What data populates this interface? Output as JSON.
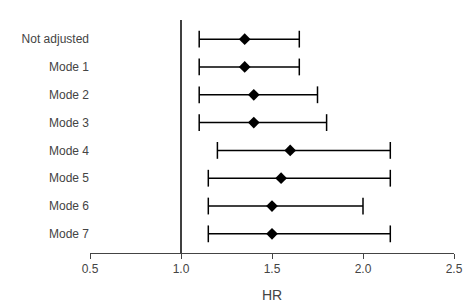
{
  "chart_data": {
    "type": "forest",
    "categories": [
      "Not adjusted",
      "Mode 1",
      "Mode 2",
      "Mode 3",
      "Mode 4",
      "Mode 5",
      "Mode 6",
      "Mode 7"
    ],
    "values": [
      1.35,
      1.35,
      1.4,
      1.4,
      1.6,
      1.55,
      1.5,
      1.5
    ],
    "ci_low": [
      1.1,
      1.1,
      1.1,
      1.1,
      1.2,
      1.15,
      1.15,
      1.15
    ],
    "ci_high": [
      1.65,
      1.65,
      1.75,
      1.8,
      2.15,
      2.15,
      2.0,
      2.15
    ],
    "xlabel": "HR",
    "xlim": [
      0.5,
      2.5
    ],
    "xticks": [
      0.5,
      {
        "value": 1.0,
        "label": "1.0"
      },
      1.5,
      {
        "value": 2.0,
        "label": "2.0"
      },
      2.5
    ],
    "reference_line": 1.0,
    "color": "#000000",
    "marker": "diamond",
    "grid": false
  }
}
